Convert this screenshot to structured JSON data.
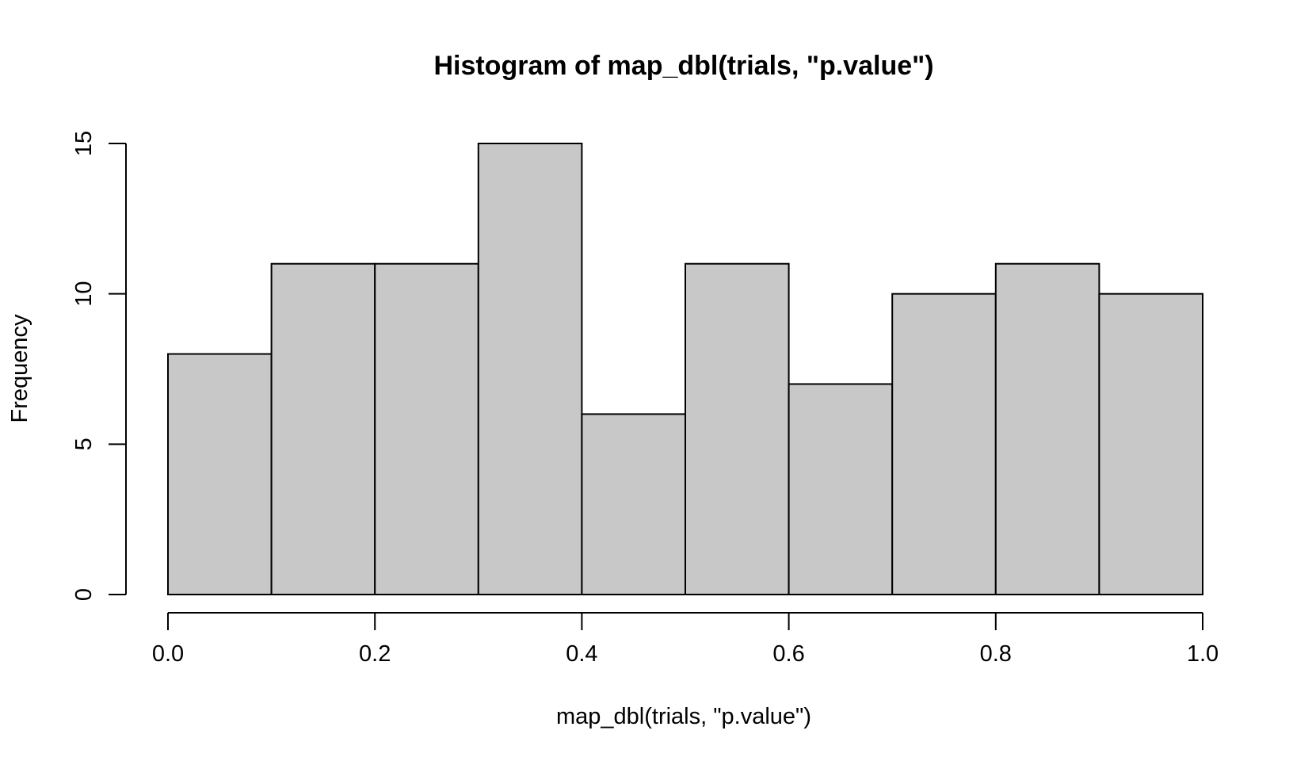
{
  "chart_data": {
    "type": "bar",
    "title": "Histogram of map_dbl(trials, \"p.value\")",
    "xlabel": "map_dbl(trials, \"p.value\")",
    "ylabel": "Frequency",
    "bins": [
      {
        "start": 0.0,
        "end": 0.1,
        "count": 8
      },
      {
        "start": 0.1,
        "end": 0.2,
        "count": 11
      },
      {
        "start": 0.2,
        "end": 0.3,
        "count": 11
      },
      {
        "start": 0.3,
        "end": 0.4,
        "count": 15
      },
      {
        "start": 0.4,
        "end": 0.5,
        "count": 6
      },
      {
        "start": 0.5,
        "end": 0.6,
        "count": 11
      },
      {
        "start": 0.6,
        "end": 0.7,
        "count": 7
      },
      {
        "start": 0.7,
        "end": 0.8,
        "count": 10
      },
      {
        "start": 0.8,
        "end": 0.9,
        "count": 11
      },
      {
        "start": 0.9,
        "end": 1.0,
        "count": 10
      }
    ],
    "xlim": [
      0.0,
      1.0
    ],
    "ylim": [
      0,
      15
    ],
    "x_ticks": [
      0.0,
      0.2,
      0.4,
      0.6,
      0.8,
      1.0
    ],
    "x_tick_labels": [
      "0.0",
      "0.2",
      "0.4",
      "0.6",
      "0.8",
      "1.0"
    ],
    "y_ticks": [
      0,
      5,
      10,
      15
    ],
    "y_tick_labels": [
      "0",
      "5",
      "10",
      "15"
    ],
    "bar_color": "#c8c8c8",
    "grid": false,
    "legend": "none"
  }
}
